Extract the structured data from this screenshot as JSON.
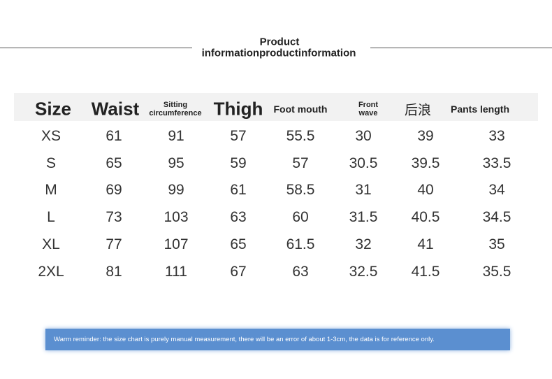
{
  "header": {
    "title_lines": [
      "Product",
      "informationproductinformation"
    ]
  },
  "table": {
    "columns": [
      "Size",
      "Waist",
      "Sitting circumference",
      "Thigh",
      "Foot mouth",
      "Front wave",
      "后浪",
      "Pants length"
    ],
    "rows": [
      [
        "XS",
        "61",
        "91",
        "57",
        "55.5",
        "30",
        "39",
        "33"
      ],
      [
        "S",
        "65",
        "95",
        "59",
        "57",
        "30.5",
        "39.5",
        "33.5"
      ],
      [
        "M",
        "69",
        "99",
        "61",
        "58.5",
        "31",
        "40",
        "34"
      ],
      [
        "L",
        "73",
        "103",
        "63",
        "60",
        "31.5",
        "40.5",
        "34.5"
      ],
      [
        "XL",
        "77",
        "107",
        "65",
        "61.5",
        "32",
        "41",
        "35"
      ],
      [
        "2XL",
        "81",
        "111",
        "67",
        "63",
        "32.5",
        "41.5",
        "35.5"
      ]
    ]
  },
  "footer": {
    "note": "Warm reminder: the size chart is purely manual measurement, there will be an error of about 1-3cm, the data is for reference only."
  }
}
